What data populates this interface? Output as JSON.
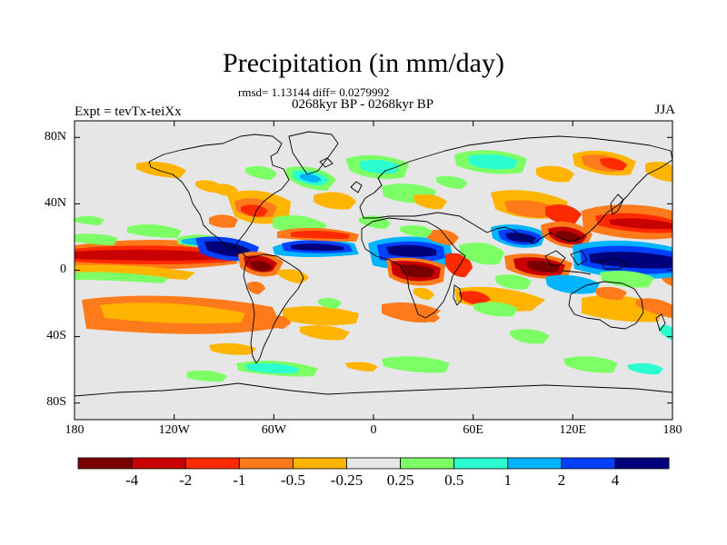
{
  "title": "Precipitation (in mm/day)",
  "stats_line": "rmsd= 1.13144 diff= 0.0279992",
  "period_line": "0268kyr BP - 0268kyr BP",
  "expt_label": "Expt = tevTx-teiXx",
  "season_label": "JJA",
  "map": {
    "projection": "cylindrical equidistant",
    "lon_ticks": [
      "180",
      "120W",
      "60W",
      "0",
      "60E",
      "120E",
      "180"
    ],
    "lat_ticks": [
      "80N",
      "40N",
      "0",
      "40S",
      "80S"
    ],
    "background_color": "#e6e6e6",
    "coastline_color": "#000000"
  },
  "colorbar": {
    "colors": [
      "#7a0000",
      "#c80000",
      "#ff2a00",
      "#ff7a1a",
      "#ffb400",
      "#e6e6e6",
      "#7dff66",
      "#2cffcf",
      "#00b4ff",
      "#0040ff",
      "#00007a"
    ],
    "labels": [
      "-4",
      "-2",
      "-1",
      "-0.5",
      "-0.25",
      "0.25",
      "0.5",
      "1",
      "2",
      "4"
    ]
  }
}
